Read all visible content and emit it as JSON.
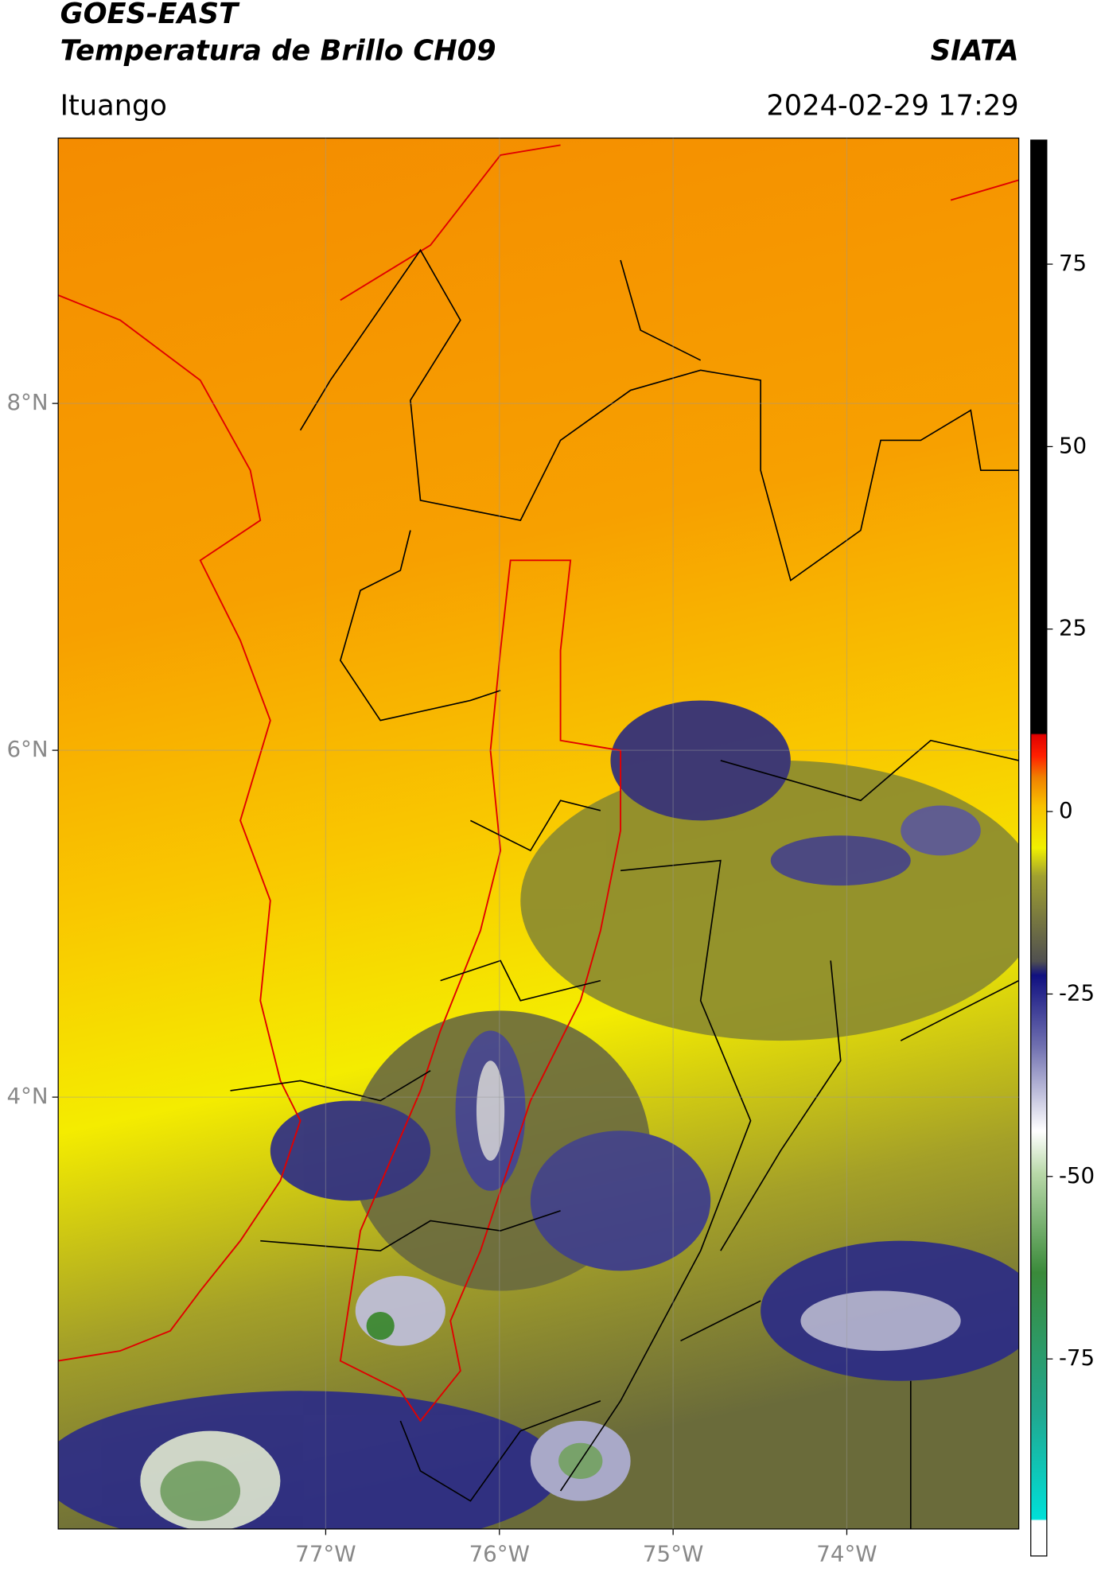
{
  "header": {
    "title": "GOES-EAST",
    "subtitle": "Temperatura de Brillo CH09",
    "source": "SIATA",
    "location": "Ituango",
    "datetime": "2024-02-29 17:29"
  },
  "map": {
    "latlim": [
      1.51,
      9.53
    ],
    "lonlim": [
      -78.54,
      -73.01
    ],
    "latticks": [
      {
        "value": 8,
        "label": "8°N"
      },
      {
        "value": 6,
        "label": "6°N"
      },
      {
        "value": 4,
        "label": "4°N"
      }
    ],
    "lonticks": [
      {
        "value": -77,
        "label": "77°W"
      },
      {
        "value": -76,
        "label": "76°W"
      },
      {
        "value": -75,
        "label": "75°W"
      },
      {
        "value": -74,
        "label": "74°W"
      }
    ],
    "grid": true
  },
  "colorbar": {
    "lim": [
      -102,
      92
    ],
    "ticks": [
      75,
      50,
      25,
      0,
      -25,
      -50,
      -75
    ]
  }
}
